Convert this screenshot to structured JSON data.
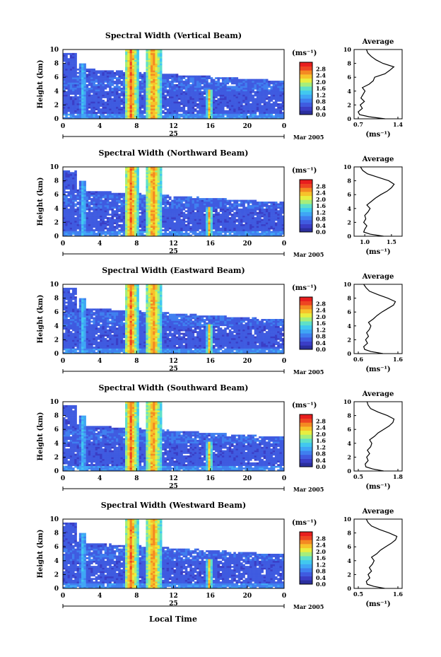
{
  "colors": {
    "background": "#ffffff",
    "axis": "#000000",
    "colormap": [
      "#2b2f9e",
      "#3a3ec6",
      "#3f5be0",
      "#3f7fef",
      "#3fa6f5",
      "#41c8ef",
      "#5fe0c8",
      "#a6ee7a",
      "#e8ee40",
      "#f7c22a",
      "#f48a22",
      "#ee4522",
      "#e81e1e"
    ]
  },
  "footer": {
    "xlabel": "Local Time"
  },
  "chart_data": [
    {
      "type": "heatmap",
      "title": "Spectral Width (Vertical Beam)",
      "ylabel": "Height (km)",
      "ylim": [
        0,
        10
      ],
      "yticks": [
        "0",
        "2",
        "4",
        "6",
        "8",
        "10"
      ],
      "xlim": [
        0,
        24
      ],
      "xticks": [
        "0",
        "4",
        "8",
        "12",
        "16",
        "20",
        "0"
      ],
      "date_day": "25",
      "date_label": "Mar 2005",
      "colorbar": {
        "unit": "(ms⁻¹)",
        "ticks": [
          "2.8",
          "2.4",
          "2.0",
          "1.6",
          "1.2",
          "0.8",
          "0.4",
          "0.0"
        ],
        "range": [
          0,
          3.2
        ]
      },
      "average": {
        "title": "Average",
        "xlabel": "(ms⁻¹)",
        "xticks": [
          "0.7",
          "1.4"
        ],
        "xlim": [
          0.7,
          1.4
        ],
        "profile": [
          {
            "height": 0,
            "value": 1.15
          },
          {
            "height": 0.3,
            "value": 0.92
          },
          {
            "height": 0.6,
            "value": 0.78
          },
          {
            "height": 1.0,
            "value": 0.76
          },
          {
            "height": 1.5,
            "value": 0.82
          },
          {
            "height": 2.0,
            "value": 0.79
          },
          {
            "height": 2.5,
            "value": 0.85
          },
          {
            "height": 3.0,
            "value": 0.8
          },
          {
            "height": 3.5,
            "value": 0.83
          },
          {
            "height": 4.0,
            "value": 0.86
          },
          {
            "height": 4.5,
            "value": 0.82
          },
          {
            "height": 5.0,
            "value": 0.92
          },
          {
            "height": 5.5,
            "value": 0.98
          },
          {
            "height": 6.0,
            "value": 1.0
          },
          {
            "height": 6.5,
            "value": 1.15
          },
          {
            "height": 7.0,
            "value": 1.22
          },
          {
            "height": 7.5,
            "value": 1.28
          },
          {
            "height": 8.0,
            "value": 1.12
          },
          {
            "height": 8.5,
            "value": 1.02
          },
          {
            "height": 9.0,
            "value": 0.95
          },
          {
            "height": 9.5,
            "value": 0.9
          },
          {
            "height": 10,
            "value": 0.88
          }
        ]
      }
    },
    {
      "type": "heatmap",
      "title": "Spectral Width (Northward Beam)",
      "ylabel": "Height (km)",
      "ylim": [
        0,
        10
      ],
      "yticks": [
        "0",
        "2",
        "4",
        "6",
        "8",
        "10"
      ],
      "xlim": [
        0,
        24
      ],
      "xticks": [
        "0",
        "4",
        "8",
        "12",
        "16",
        "20",
        "0"
      ],
      "date_day": "25",
      "date_label": "Mar 2005",
      "colorbar": {
        "unit": "(ms⁻¹)",
        "ticks": [
          "2.8",
          "2.4",
          "2.0",
          "1.6",
          "1.2",
          "0.8",
          "0.4",
          "0.0"
        ],
        "range": [
          0,
          3.2
        ]
      },
      "average": {
        "title": "Average",
        "xlabel": "(ms⁻¹)",
        "xticks": [
          "1.0",
          "1.5"
        ],
        "xlim": [
          0.8,
          1.7
        ],
        "profile": [
          {
            "height": 0,
            "value": 1.35
          },
          {
            "height": 0.3,
            "value": 1.1
          },
          {
            "height": 0.6,
            "value": 0.98
          },
          {
            "height": 1.0,
            "value": 1.0
          },
          {
            "height": 1.5,
            "value": 1.04
          },
          {
            "height": 2.0,
            "value": 0.98
          },
          {
            "height": 2.5,
            "value": 1.02
          },
          {
            "height": 3.0,
            "value": 1.0
          },
          {
            "height": 3.5,
            "value": 1.06
          },
          {
            "height": 4.0,
            "value": 1.1
          },
          {
            "height": 4.5,
            "value": 1.04
          },
          {
            "height": 5.0,
            "value": 1.12
          },
          {
            "height": 5.5,
            "value": 1.2
          },
          {
            "height": 6.0,
            "value": 1.3
          },
          {
            "height": 6.5,
            "value": 1.42
          },
          {
            "height": 7.0,
            "value": 1.5
          },
          {
            "height": 7.5,
            "value": 1.55
          },
          {
            "height": 8.0,
            "value": 1.45
          },
          {
            "height": 8.5,
            "value": 1.25
          },
          {
            "height": 9.0,
            "value": 1.05
          },
          {
            "height": 9.5,
            "value": 0.96
          },
          {
            "height": 10,
            "value": 0.92
          }
        ]
      }
    },
    {
      "type": "heatmap",
      "title": "Spectral Width (Eastward Beam)",
      "ylabel": "Height (km)",
      "ylim": [
        0,
        10
      ],
      "yticks": [
        "0",
        "2",
        "4",
        "6",
        "8",
        "10"
      ],
      "xlim": [
        0,
        24
      ],
      "xticks": [
        "0",
        "4",
        "8",
        "12",
        "16",
        "20",
        "0"
      ],
      "date_day": "25",
      "date_label": "Mar 2005",
      "colorbar": {
        "unit": "(ms⁻¹)",
        "ticks": [
          "2.8",
          "2.4",
          "2.0",
          "1.6",
          "1.2",
          "0.8",
          "0.4",
          "0.0"
        ],
        "range": [
          0,
          3.2
        ]
      },
      "average": {
        "title": "Average",
        "xlabel": "(ms⁻¹)",
        "xticks": [
          "0.6",
          "1.6"
        ],
        "xlim": [
          0.6,
          1.6
        ],
        "profile": [
          {
            "height": 0,
            "value": 1.2
          },
          {
            "height": 0.3,
            "value": 0.95
          },
          {
            "height": 0.6,
            "value": 0.82
          },
          {
            "height": 1.0,
            "value": 0.8
          },
          {
            "height": 1.5,
            "value": 0.88
          },
          {
            "height": 2.0,
            "value": 0.84
          },
          {
            "height": 2.5,
            "value": 0.9
          },
          {
            "height": 3.0,
            "value": 0.86
          },
          {
            "height": 3.5,
            "value": 0.92
          },
          {
            "height": 4.0,
            "value": 0.95
          },
          {
            "height": 4.5,
            "value": 0.9
          },
          {
            "height": 5.0,
            "value": 1.0
          },
          {
            "height": 5.5,
            "value": 1.08
          },
          {
            "height": 6.0,
            "value": 1.18
          },
          {
            "height": 6.5,
            "value": 1.3
          },
          {
            "height": 7.0,
            "value": 1.42
          },
          {
            "height": 7.5,
            "value": 1.46
          },
          {
            "height": 8.0,
            "value": 1.3
          },
          {
            "height": 8.5,
            "value": 1.1
          },
          {
            "height": 9.0,
            "value": 0.92
          },
          {
            "height": 9.5,
            "value": 0.85
          },
          {
            "height": 10,
            "value": 0.8
          }
        ]
      }
    },
    {
      "type": "heatmap",
      "title": "Spectral Width (Southward Beam)",
      "ylabel": "Height (km)",
      "ylim": [
        0,
        10
      ],
      "yticks": [
        "0",
        "2",
        "4",
        "6",
        "8",
        "10"
      ],
      "xlim": [
        0,
        24
      ],
      "xticks": [
        "0",
        "4",
        "8",
        "12",
        "16",
        "20",
        "0"
      ],
      "date_day": "25",
      "date_label": "Mar 2005",
      "colorbar": {
        "unit": "(ms⁻¹)",
        "ticks": [
          "2.8",
          "2.4",
          "2.0",
          "1.6",
          "1.2",
          "0.8",
          "0.4",
          "0.0"
        ],
        "range": [
          0,
          3.2
        ]
      },
      "average": {
        "title": "Average",
        "xlabel": "(ms⁻¹)",
        "xticks": [
          "0.5",
          "1.8"
        ],
        "xlim": [
          0.5,
          1.8
        ],
        "profile": [
          {
            "height": 0,
            "value": 1.3
          },
          {
            "height": 0.3,
            "value": 1.0
          },
          {
            "height": 0.6,
            "value": 0.82
          },
          {
            "height": 1.0,
            "value": 0.8
          },
          {
            "height": 1.5,
            "value": 0.88
          },
          {
            "height": 2.0,
            "value": 0.84
          },
          {
            "height": 2.5,
            "value": 0.92
          },
          {
            "height": 3.0,
            "value": 0.86
          },
          {
            "height": 3.5,
            "value": 0.95
          },
          {
            "height": 4.0,
            "value": 0.98
          },
          {
            "height": 4.5,
            "value": 0.92
          },
          {
            "height": 5.0,
            "value": 1.05
          },
          {
            "height": 5.5,
            "value": 1.15
          },
          {
            "height": 6.0,
            "value": 1.3
          },
          {
            "height": 6.5,
            "value": 1.45
          },
          {
            "height": 7.0,
            "value": 1.55
          },
          {
            "height": 7.5,
            "value": 1.58
          },
          {
            "height": 8.0,
            "value": 1.4
          },
          {
            "height": 8.5,
            "value": 1.15
          },
          {
            "height": 9.0,
            "value": 0.95
          },
          {
            "height": 9.5,
            "value": 0.88
          },
          {
            "height": 10,
            "value": 0.85
          }
        ]
      }
    },
    {
      "type": "heatmap",
      "title": "Spectral Width (Westward Beam)",
      "ylabel": "Height (km)",
      "ylim": [
        0,
        10
      ],
      "yticks": [
        "0",
        "2",
        "4",
        "6",
        "8",
        "10"
      ],
      "xlim": [
        0,
        24
      ],
      "xticks": [
        "0",
        "4",
        "8",
        "12",
        "16",
        "20",
        "0"
      ],
      "date_day": "25",
      "date_label": "Mar 2005",
      "colorbar": {
        "unit": "(ms⁻¹)",
        "ticks": [
          "2.8",
          "2.4",
          "2.0",
          "1.6",
          "1.2",
          "0.8",
          "0.4",
          "0.0"
        ],
        "range": [
          0,
          3.2
        ]
      },
      "average": {
        "title": "Average",
        "xlabel": "(ms⁻¹)",
        "xticks": [
          "0.5",
          "1.6"
        ],
        "xlim": [
          0.5,
          1.6
        ],
        "profile": [
          {
            "height": 0,
            "value": 1.2
          },
          {
            "height": 0.3,
            "value": 0.95
          },
          {
            "height": 0.6,
            "value": 0.8
          },
          {
            "height": 1.0,
            "value": 0.78
          },
          {
            "height": 1.5,
            "value": 0.86
          },
          {
            "height": 2.0,
            "value": 0.82
          },
          {
            "height": 2.5,
            "value": 0.9
          },
          {
            "height": 3.0,
            "value": 0.85
          },
          {
            "height": 3.5,
            "value": 0.92
          },
          {
            "height": 4.0,
            "value": 0.96
          },
          {
            "height": 4.5,
            "value": 0.9
          },
          {
            "height": 5.0,
            "value": 1.02
          },
          {
            "height": 5.5,
            "value": 1.1
          },
          {
            "height": 6.0,
            "value": 1.22
          },
          {
            "height": 6.5,
            "value": 1.35
          },
          {
            "height": 7.0,
            "value": 1.45
          },
          {
            "height": 7.5,
            "value": 1.48
          },
          {
            "height": 8.0,
            "value": 1.3
          },
          {
            "height": 8.5,
            "value": 1.08
          },
          {
            "height": 9.0,
            "value": 0.9
          },
          {
            "height": 9.5,
            "value": 0.82
          },
          {
            "height": 10,
            "value": 0.78
          }
        ]
      }
    }
  ]
}
